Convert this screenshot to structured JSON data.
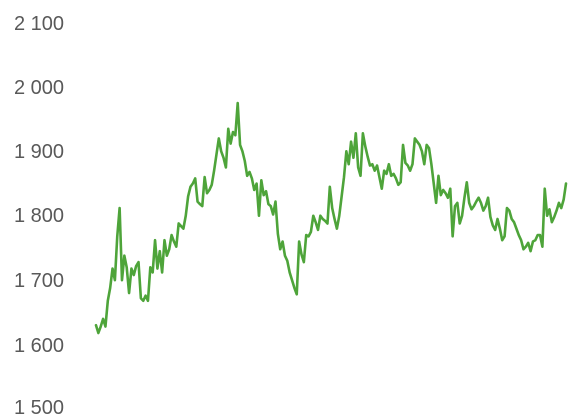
{
  "chart_data": {
    "type": "line",
    "title": "",
    "xlabel": "",
    "ylabel": "",
    "ylim": [
      1500,
      2100
    ],
    "yticks": [
      1500,
      1600,
      1700,
      1800,
      1900,
      2000,
      2100
    ],
    "ytick_labels": [
      "1 500",
      "1 600",
      "1 700",
      "1 800",
      "1 900",
      "2 000",
      "2 100"
    ],
    "gridlines": false,
    "legend": "none",
    "series_color": "#4ea43a",
    "series": [
      {
        "values": [
          1630,
          1618,
          1628,
          1640,
          1628,
          1668,
          1688,
          1718,
          1700,
          1768,
          1812,
          1700,
          1738,
          1720,
          1680,
          1718,
          1708,
          1722,
          1728,
          1672,
          1668,
          1676,
          1668,
          1720,
          1712,
          1762,
          1718,
          1745,
          1712,
          1762,
          1738,
          1748,
          1770,
          1760,
          1752,
          1788,
          1784,
          1780,
          1800,
          1830,
          1845,
          1850,
          1858,
          1822,
          1818,
          1815,
          1860,
          1835,
          1840,
          1848,
          1870,
          1895,
          1920,
          1900,
          1890,
          1875,
          1935,
          1912,
          1930,
          1925,
          1975,
          1910,
          1900,
          1885,
          1862,
          1868,
          1858,
          1840,
          1850,
          1800,
          1855,
          1832,
          1838,
          1818,
          1815,
          1802,
          1822,
          1772,
          1748,
          1760,
          1738,
          1730,
          1712,
          1700,
          1688,
          1678,
          1760,
          1740,
          1728,
          1770,
          1768,
          1775,
          1800,
          1790,
          1778,
          1800,
          1795,
          1792,
          1788,
          1845,
          1812,
          1795,
          1780,
          1800,
          1830,
          1860,
          1900,
          1880,
          1915,
          1890,
          1928,
          1875,
          1862,
          1928,
          1908,
          1892,
          1878,
          1880,
          1870,
          1878,
          1860,
          1842,
          1870,
          1865,
          1880,
          1862,
          1865,
          1858,
          1848,
          1852,
          1910,
          1882,
          1878,
          1870,
          1880,
          1920,
          1915,
          1910,
          1900,
          1880,
          1910,
          1905,
          1880,
          1850,
          1820,
          1862,
          1832,
          1840,
          1835,
          1828,
          1842,
          1768,
          1815,
          1820,
          1788,
          1800,
          1828,
          1852,
          1820,
          1810,
          1815,
          1822,
          1828,
          1820,
          1808,
          1815,
          1828,
          1798,
          1785,
          1778,
          1795,
          1780,
          1762,
          1768,
          1812,
          1808,
          1795,
          1790,
          1780,
          1770,
          1762,
          1748,
          1752,
          1758,
          1745,
          1760,
          1762,
          1770,
          1770,
          1752,
          1842,
          1800,
          1810,
          1790,
          1798,
          1808,
          1820,
          1812,
          1825,
          1850
        ]
      }
    ]
  }
}
